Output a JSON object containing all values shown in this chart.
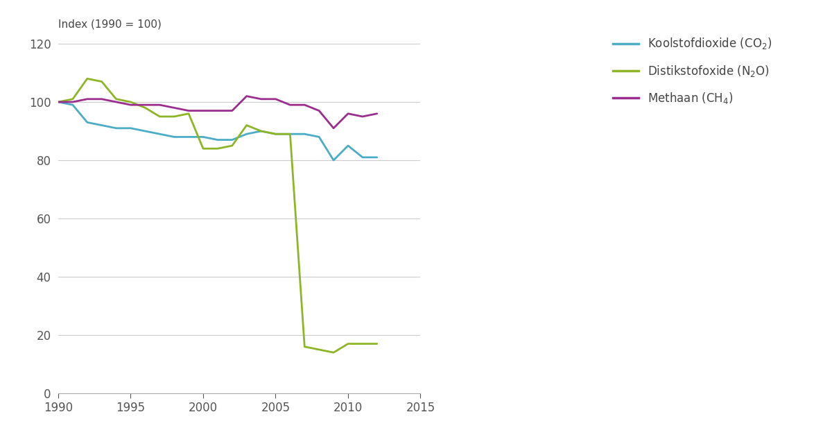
{
  "years": [
    1990,
    1991,
    1992,
    1993,
    1994,
    1995,
    1996,
    1997,
    1998,
    1999,
    2000,
    2001,
    2002,
    2003,
    2004,
    2005,
    2006,
    2007,
    2008,
    2009,
    2010,
    2011,
    2012
  ],
  "co2": [
    100,
    99,
    93,
    92,
    91,
    91,
    90,
    89,
    88,
    88,
    88,
    87,
    87,
    89,
    90,
    89,
    89,
    89,
    88,
    80,
    85,
    81,
    81
  ],
  "n2o": [
    100,
    101,
    108,
    107,
    101,
    100,
    98,
    95,
    95,
    96,
    84,
    84,
    85,
    92,
    90,
    89,
    89,
    16,
    15,
    14,
    17,
    17,
    17
  ],
  "ch4": [
    100,
    100,
    101,
    101,
    100,
    99,
    99,
    99,
    98,
    97,
    97,
    97,
    97,
    102,
    101,
    101,
    99,
    99,
    97,
    91,
    96,
    95,
    96
  ],
  "co2_color": "#4bacc6",
  "n2o_color": "#8db526",
  "ch4_color": "#9b2d8e",
  "ylabel": "Index (1990 = 100)",
  "ylim": [
    0,
    120
  ],
  "xlim": [
    1990,
    2015
  ],
  "yticks": [
    0,
    20,
    40,
    60,
    80,
    100,
    120
  ],
  "xticks": [
    1990,
    1995,
    2000,
    2005,
    2010,
    2015
  ],
  "grid_color": "#cccccc",
  "background_color": "#ffffff",
  "line_width": 2.0,
  "font_size": 12
}
